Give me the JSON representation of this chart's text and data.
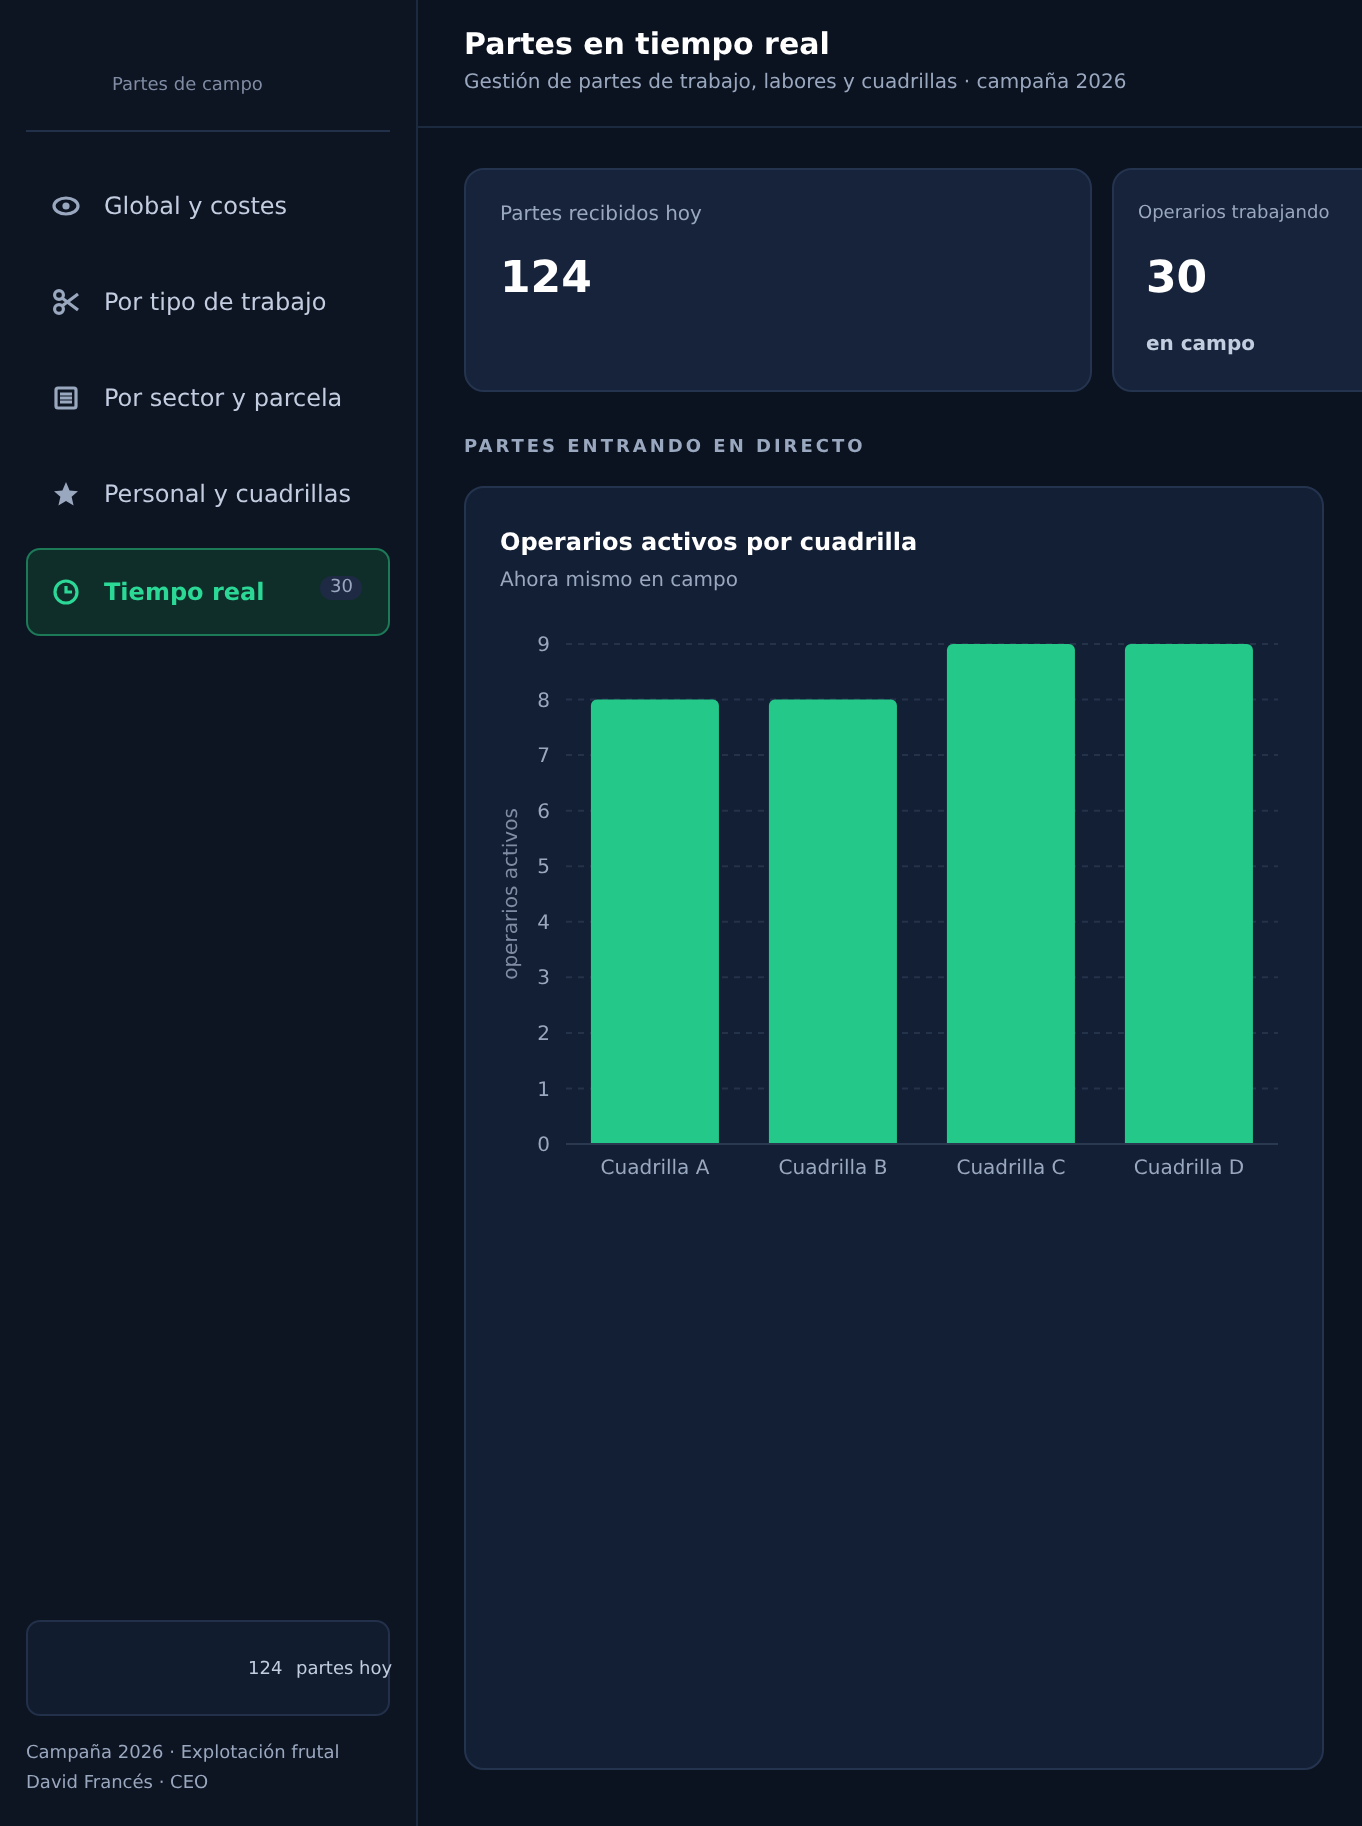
{
  "chart_data": {
    "type": "bar",
    "title": "Operarios activos por cuadrilla",
    "subtitle": "Ahora mismo en campo",
    "ylabel": "operarios activos",
    "categories": [
      "Cuadrilla A",
      "Cuadrilla B",
      "Cuadrilla C",
      "Cuadrilla D"
    ],
    "values": [
      8,
      8,
      9,
      9
    ],
    "color": "#24c98a",
    "ylim": [
      0,
      9
    ],
    "yticks": [
      0,
      1,
      2,
      3,
      4,
      5,
      6,
      7,
      8,
      9
    ],
    "grid": "y",
    "annotations": [
      "Partes de campo",
      "Global y costes",
      "Por tipo de trabajo",
      "Por sector y parcela",
      "Personal y cuadrillas",
      "Tiempo real",
      "30",
      "124",
      "partes hoy",
      "Campaña 2026 · Explotación frutal",
      "David Francés · CEO",
      "Partes en tiempo real",
      "Gestión de partes de trabajo, labores y cuadrillas · campaña 2026",
      "Partes recibidos hoy",
      "124",
      "Operarios trabajando",
      "30",
      "en campo",
      "PARTES ENTRANDO EN DIRECTO"
    ]
  }
}
